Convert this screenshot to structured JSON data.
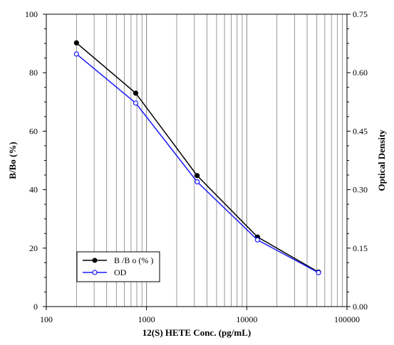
{
  "chart_data": {
    "type": "line",
    "xlabel": "12(S) HETE Conc. (pg/mL)",
    "ylabel": "B/Bo (%)",
    "y2label": "Optical Density",
    "x_scale": "log",
    "xlim": [
      100,
      100000
    ],
    "ylim": [
      0,
      100
    ],
    "y2lim": [
      0,
      0.75
    ],
    "x_ticks": [
      "100",
      "1000",
      "10000",
      "100000"
    ],
    "y_ticks": [
      "0",
      "20",
      "40",
      "60",
      "80",
      "100"
    ],
    "y2_ticks": [
      "0.00",
      "0.15",
      "0.30",
      "0.45",
      "0.60",
      "0.75"
    ],
    "grid": "vertical log grid lines",
    "legend_position": "bottom-left",
    "series": [
      {
        "name": "B /B o (% )",
        "axis": "left",
        "color": "#000000",
        "marker": "filled-circle",
        "x": [
          200,
          780,
          3200,
          12800,
          52000
        ],
        "y": [
          90.2,
          73.0,
          44.8,
          23.8,
          11.8
        ]
      },
      {
        "name": "OD",
        "axis": "right",
        "color": "#1a1aff",
        "marker": "open-circle",
        "x": [
          200,
          780,
          3200,
          12800,
          52000
        ],
        "y": [
          0.648,
          0.522,
          0.32,
          0.171,
          0.087
        ]
      }
    ]
  }
}
